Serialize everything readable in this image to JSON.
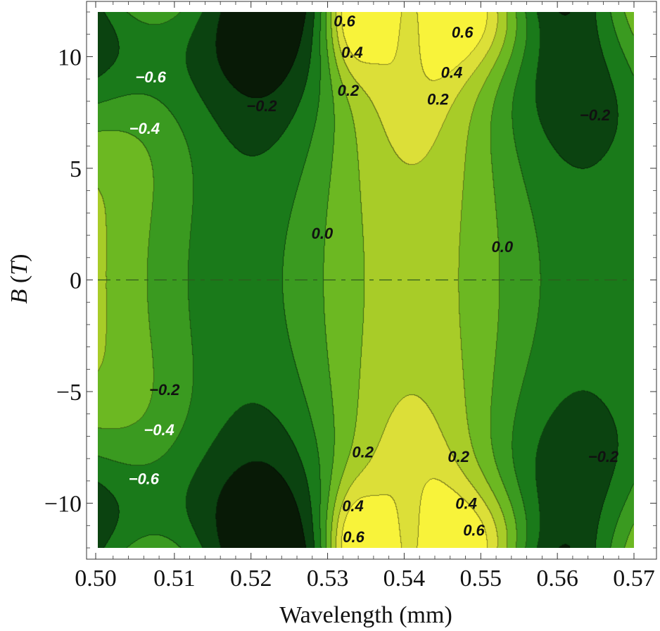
{
  "chart_data": {
    "type": "contour",
    "xlabel": "Wavelength (mm)",
    "ylabel_italic": "B",
    "ylabel_unit": "T",
    "xlim": [
      0.5,
      0.57
    ],
    "ylim": [
      -12,
      12
    ],
    "x_ticks": [
      "0.50",
      "0.51",
      "0.52",
      "0.53",
      "0.54",
      "0.55",
      "0.56",
      "0.57"
    ],
    "x_tick_values": [
      0.5,
      0.51,
      0.52,
      0.53,
      0.54,
      0.55,
      0.56,
      0.57
    ],
    "y_ticks": [
      "10",
      "5",
      "0",
      "−5",
      "−10"
    ],
    "y_tick_values": [
      10,
      5,
      0,
      -5,
      -10
    ],
    "contour_levels": [
      -0.6,
      -0.4,
      -0.2,
      0.0,
      0.2,
      0.4,
      0.6
    ],
    "zero_line_y": 0,
    "band_colors": [
      "#081a06",
      "#0b4310",
      "#1a7a1a",
      "#3a9a20",
      "#6cb822",
      "#a8cc28",
      "#dcdf38",
      "#f8f33a"
    ],
    "contour_labels": [
      {
        "text": "−0.6",
        "x": 0.5069,
        "y": 9.1,
        "color": "#ffffff"
      },
      {
        "text": "−0.4",
        "x": 0.5061,
        "y": 6.8,
        "color": "#ffffff"
      },
      {
        "text": "−0.2",
        "x": 0.5214,
        "y": 7.8,
        "color": "#111111"
      },
      {
        "text": "0.6",
        "x": 0.5322,
        "y": 11.6,
        "color": "#111111"
      },
      {
        "text": "0.4",
        "x": 0.5332,
        "y": 10.2,
        "color": "#111111"
      },
      {
        "text": "0.2",
        "x": 0.5327,
        "y": 8.5,
        "color": "#111111"
      },
      {
        "text": "0.6",
        "x": 0.5476,
        "y": 11.1,
        "color": "#111111"
      },
      {
        "text": "0.4",
        "x": 0.5462,
        "y": 9.3,
        "color": "#111111"
      },
      {
        "text": "0.2",
        "x": 0.5444,
        "y": 8.1,
        "color": "#111111"
      },
      {
        "text": "−0.2",
        "x": 0.5649,
        "y": 7.4,
        "color": "#111111"
      },
      {
        "text": "0.0",
        "x": 0.5293,
        "y": 2.1,
        "color": "#111111"
      },
      {
        "text": "0.0",
        "x": 0.5528,
        "y": 1.5,
        "color": "#111111"
      },
      {
        "text": "−0.2",
        "x": 0.5087,
        "y": -4.9,
        "color": "#111111"
      },
      {
        "text": "−0.4",
        "x": 0.508,
        "y": -6.7,
        "color": "#ffffff"
      },
      {
        "text": "−0.6",
        "x": 0.506,
        "y": -8.9,
        "color": "#ffffff"
      },
      {
        "text": "0.2",
        "x": 0.5346,
        "y": -7.7,
        "color": "#111111"
      },
      {
        "text": "0.2",
        "x": 0.5471,
        "y": -7.9,
        "color": "#111111"
      },
      {
        "text": "−0.2",
        "x": 0.566,
        "y": -7.9,
        "color": "#111111"
      },
      {
        "text": "0.4",
        "x": 0.5333,
        "y": -10.1,
        "color": "#111111"
      },
      {
        "text": "0.4",
        "x": 0.5481,
        "y": -10.0,
        "color": "#111111"
      },
      {
        "text": "0.6",
        "x": 0.5334,
        "y": -11.5,
        "color": "#111111"
      },
      {
        "text": "0.6",
        "x": 0.5491,
        "y": -11.2,
        "color": "#111111"
      }
    ]
  }
}
